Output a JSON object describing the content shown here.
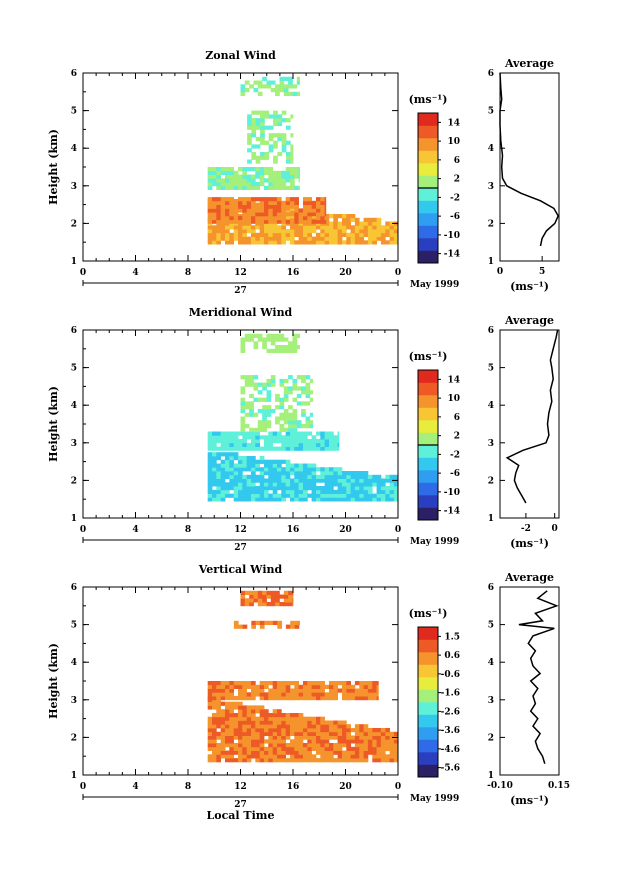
{
  "figure": {
    "xlabel": "Local Time",
    "day_label": "27",
    "date_label": "May 1999",
    "unit_label": "(ms⁻¹)"
  },
  "chart_data": [
    {
      "type": "heatmap",
      "title": "Zonal Wind",
      "ylabel": "Height (km)",
      "xlim": [
        0,
        24
      ],
      "ylim": [
        1,
        6
      ],
      "xticks": [
        "0",
        "4",
        "8",
        "12",
        "16",
        "20",
        "0"
      ],
      "yticks": [
        "1",
        "2",
        "3",
        "4",
        "5",
        "6"
      ],
      "colorbar": {
        "ticks": [
          "14",
          "10",
          "6",
          "2",
          "-2",
          "-6",
          "-10",
          "-14"
        ],
        "range": [
          -16,
          16
        ],
        "unit": "(ms⁻¹)"
      },
      "bands": [
        {
          "t0": 9.5,
          "t1": 24,
          "z0": 1.45,
          "z1": 2.65,
          "v0": 6,
          "v1": 10,
          "edge": "ramp",
          "seed": 3
        },
        {
          "t0": 9.5,
          "t1": 18.5,
          "z0": 2.0,
          "z1": 2.65,
          "v0": 8,
          "v1": 12,
          "edge": "flat",
          "seed": 5
        },
        {
          "t0": 9.5,
          "t1": 16.5,
          "z0": 2.9,
          "z1": 3.5,
          "v0": -1,
          "v1": 2,
          "edge": "flat",
          "seed": 7
        },
        {
          "t0": 12.5,
          "t1": 16.0,
          "z0": 3.6,
          "z1": 4.9,
          "v0": -1,
          "v1": 2,
          "edge": "sparse",
          "seed": 11
        },
        {
          "t0": 12.0,
          "t1": 16.5,
          "z0": 5.4,
          "z1": 5.8,
          "v0": -1,
          "v1": 2,
          "edge": "sparse",
          "seed": 13
        }
      ],
      "profile": {
        "title": "Average",
        "xlim": [
          0,
          7
        ],
        "xticks": [
          "0",
          "5"
        ],
        "ylim": [
          1,
          6
        ],
        "z": [
          1.4,
          1.6,
          1.8,
          2.0,
          2.2,
          2.4,
          2.6,
          2.8,
          3.0,
          3.2,
          3.5,
          3.8,
          4.2,
          4.6,
          5.0,
          5.3,
          5.6,
          6.0
        ],
        "v": [
          4.8,
          5.0,
          5.5,
          6.5,
          6.9,
          6.4,
          4.8,
          2.5,
          0.8,
          0.3,
          0.2,
          0.3,
          0.1,
          0.0,
          0.0,
          0.2,
          0.1,
          0.0
        ]
      }
    },
    {
      "type": "heatmap",
      "title": "Meridional Wind",
      "ylabel": "Height (km)",
      "xlim": [
        0,
        24
      ],
      "ylim": [
        1,
        6
      ],
      "xticks": [
        "0",
        "4",
        "8",
        "12",
        "16",
        "20",
        "0"
      ],
      "yticks": [
        "1",
        "2",
        "3",
        "4",
        "5",
        "6"
      ],
      "colorbar": {
        "ticks": [
          "14",
          "10",
          "6",
          "2",
          "-2",
          "-6",
          "-10",
          "-14"
        ],
        "range": [
          -16,
          16
        ],
        "unit": "(ms⁻¹)"
      },
      "bands": [
        {
          "t0": 9.5,
          "t1": 24,
          "z0": 1.45,
          "z1": 2.75,
          "v0": -4,
          "v1": -2,
          "edge": "ramp",
          "seed": 17
        },
        {
          "t0": 9.5,
          "t1": 19.5,
          "z0": 2.8,
          "z1": 3.3,
          "v0": -3,
          "v1": 0,
          "edge": "flat",
          "seed": 19
        },
        {
          "t0": 12.0,
          "t1": 17.5,
          "z0": 3.3,
          "z1": 4.7,
          "v0": -1,
          "v1": 2,
          "edge": "sparse",
          "seed": 23
        },
        {
          "t0": 12.0,
          "t1": 16.5,
          "z0": 5.4,
          "z1": 5.8,
          "v0": 0,
          "v1": 2,
          "edge": "sparse",
          "seed": 29
        }
      ],
      "profile": {
        "title": "Average",
        "xlim": [
          -3.8,
          0.3
        ],
        "xticks": [
          "-2",
          "0"
        ],
        "ylim": [
          1,
          6
        ],
        "z": [
          1.4,
          1.6,
          1.8,
          2.0,
          2.2,
          2.4,
          2.6,
          2.8,
          3.0,
          3.2,
          3.5,
          3.8,
          4.1,
          4.4,
          4.7,
          5.0,
          5.2,
          5.5,
          5.8,
          6.0
        ],
        "v": [
          -2.0,
          -2.3,
          -2.6,
          -2.8,
          -2.7,
          -2.5,
          -3.3,
          -2.2,
          -0.6,
          -0.4,
          -0.5,
          -0.4,
          -0.2,
          -0.3,
          -0.1,
          -0.2,
          -0.3,
          -0.1,
          0.1,
          0.2
        ]
      }
    },
    {
      "type": "heatmap",
      "title": "Vertical Wind",
      "ylabel": "Height (km)",
      "xlabel": "Local Time",
      "xlim": [
        0,
        24
      ],
      "ylim": [
        1,
        6
      ],
      "xticks": [
        "0",
        "4",
        "8",
        "12",
        "16",
        "20",
        "0"
      ],
      "yticks": [
        "1",
        "2",
        "3",
        "4",
        "5",
        "6"
      ],
      "colorbar": {
        "ticks": [
          "1.5",
          "0.6",
          "-0.6",
          "-1.6",
          "-2.6",
          "-3.6",
          "-4.6",
          "-5.6"
        ],
        "range": [
          -6.0,
          2.0
        ],
        "unit": "(ms⁻¹)"
      },
      "bands": [
        {
          "t0": 9.5,
          "t1": 24,
          "z0": 1.35,
          "z1": 3.0,
          "v0": 0.3,
          "v1": 0.9,
          "edge": "ramp",
          "seed": 31
        },
        {
          "t0": 9.5,
          "t1": 22.5,
          "z0": 3.0,
          "z1": 3.5,
          "v0": 0.3,
          "v1": 0.8,
          "edge": "flat",
          "seed": 37
        },
        {
          "t0": 11.5,
          "t1": 16.5,
          "z0": 4.9,
          "z1": 5.1,
          "v0": 0.4,
          "v1": 0.8,
          "edge": "sparse",
          "seed": 41
        },
        {
          "t0": 12.0,
          "t1": 16.0,
          "z0": 5.5,
          "z1": 5.8,
          "v0": 0.5,
          "v1": 0.9,
          "edge": "flat",
          "seed": 43
        }
      ],
      "profile": {
        "title": "Average",
        "xlim": [
          -0.1,
          0.15
        ],
        "xticks": [
          "-0.10",
          "0.15"
        ],
        "ylim": [
          1,
          6
        ],
        "z": [
          1.3,
          1.5,
          1.7,
          1.9,
          2.1,
          2.3,
          2.5,
          2.7,
          2.9,
          3.1,
          3.3,
          3.5,
          3.7,
          3.9,
          4.1,
          4.3,
          4.5,
          4.7,
          4.9,
          5.0,
          5.1,
          5.3,
          5.5,
          5.7,
          5.9
        ],
        "v": [
          0.09,
          0.08,
          0.06,
          0.05,
          0.07,
          0.04,
          0.06,
          0.03,
          0.05,
          0.04,
          0.06,
          0.03,
          0.07,
          0.04,
          0.03,
          0.05,
          0.02,
          0.04,
          0.13,
          -0.02,
          0.08,
          0.05,
          0.14,
          0.06,
          0.1
        ]
      }
    }
  ],
  "colorscale": [
    "#2b1f66",
    "#2a3fbf",
    "#2f6be6",
    "#2f9df0",
    "#33c8ee",
    "#5ef0d8",
    "#a4f07a",
    "#e8ec3c",
    "#f8c634",
    "#f5942c",
    "#ee5a26",
    "#e02a1e"
  ]
}
